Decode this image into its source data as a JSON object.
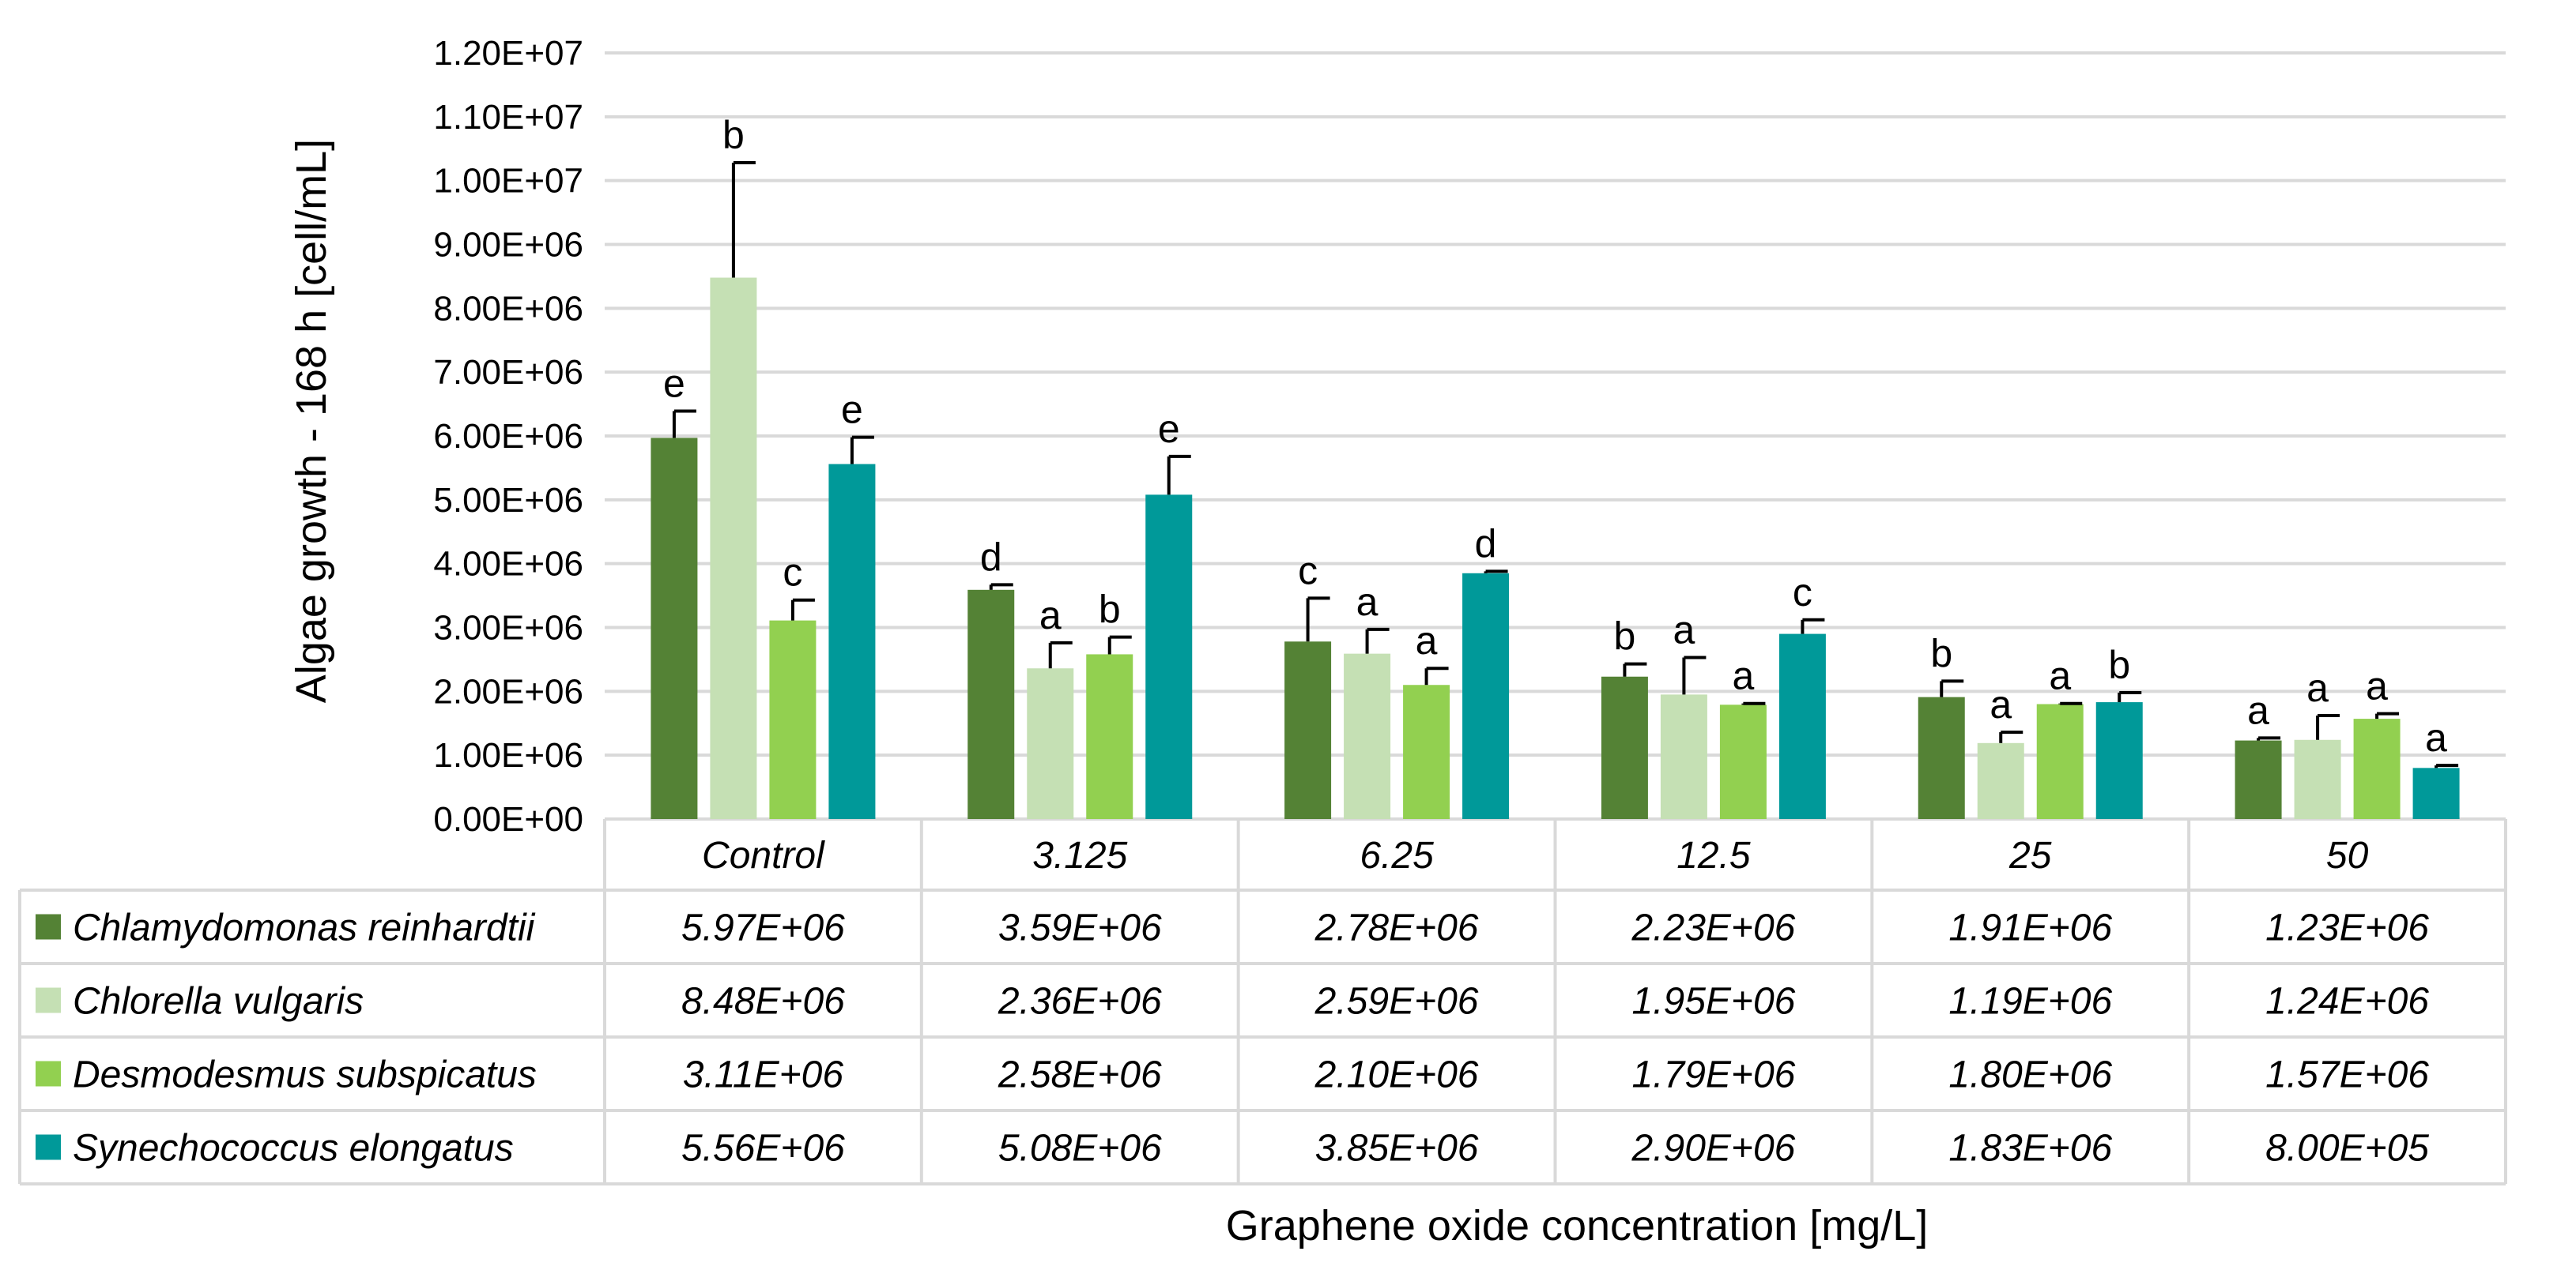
{
  "chart_data": {
    "type": "bar",
    "title": "",
    "ylabel": "Algae growth - 168 h  [cell/mL]",
    "xlabel": "Graphene oxide concentration [mg/L]",
    "ylim": [
      0,
      12000000
    ],
    "yticks": [
      0,
      1000000,
      2000000,
      3000000,
      4000000,
      5000000,
      6000000,
      7000000,
      8000000,
      9000000,
      10000000,
      11000000,
      12000000
    ],
    "ytick_labels": [
      "0.00E+00",
      "1.00E+06",
      "2.00E+06",
      "3.00E+06",
      "4.00E+06",
      "5.00E+06",
      "6.00E+06",
      "7.00E+06",
      "8.00E+06",
      "9.00E+06",
      "1.00E+07",
      "1.10E+07",
      "1.20E+07"
    ],
    "categories": [
      "Control",
      "3.125",
      "6.25",
      "12.5",
      "25",
      "50"
    ],
    "grid": true,
    "legend": "data-table-left",
    "series": [
      {
        "name": "Chlamydomonas reinhardtii",
        "color": "#548235",
        "values": [
          5970000,
          3590000,
          2780000,
          2230000,
          1910000,
          1230000
        ],
        "labels": [
          "5.97E+06",
          "3.59E+06",
          "2.78E+06",
          "2.23E+06",
          "1.91E+06",
          "1.23E+06"
        ],
        "errors": [
          420000,
          80000,
          680000,
          200000,
          250000,
          40000
        ],
        "letters": [
          "e",
          "d",
          "c",
          "b",
          "b",
          "a"
        ]
      },
      {
        "name": "Chlorella vulgaris",
        "color": "#c5e0b4",
        "values": [
          8480000,
          2360000,
          2590000,
          1950000,
          1190000,
          1240000
        ],
        "labels": [
          "8.48E+06",
          "2.36E+06",
          "2.59E+06",
          "1.95E+06",
          "1.19E+06",
          "1.24E+06"
        ],
        "errors": [
          1800000,
          400000,
          380000,
          580000,
          170000,
          380000
        ],
        "letters": [
          "b",
          "a",
          "a",
          "a",
          "a",
          "a"
        ]
      },
      {
        "name": "Desmodesmus subspicatus",
        "color": "#92d050",
        "values": [
          3110000,
          2580000,
          2100000,
          1790000,
          1800000,
          1570000
        ],
        "labels": [
          "3.11E+06",
          "2.58E+06",
          "2.10E+06",
          "1.79E+06",
          "1.80E+06",
          "1.57E+06"
        ],
        "errors": [
          320000,
          270000,
          260000,
          20000,
          10000,
          80000
        ],
        "letters": [
          "c",
          "b",
          "a",
          "a",
          "a",
          "a"
        ]
      },
      {
        "name": "Synechococcus elongatus",
        "color": "#009999",
        "values": [
          5560000,
          5080000,
          3850000,
          2900000,
          1830000,
          800000
        ],
        "labels": [
          "5.56E+06",
          "5.08E+06",
          "3.85E+06",
          "2.90E+06",
          "1.83E+06",
          "8.00E+05"
        ],
        "errors": [
          420000,
          600000,
          30000,
          220000,
          150000,
          40000
        ],
        "letters": [
          "e",
          "e",
          "d",
          "c",
          "b",
          "a"
        ]
      }
    ]
  }
}
